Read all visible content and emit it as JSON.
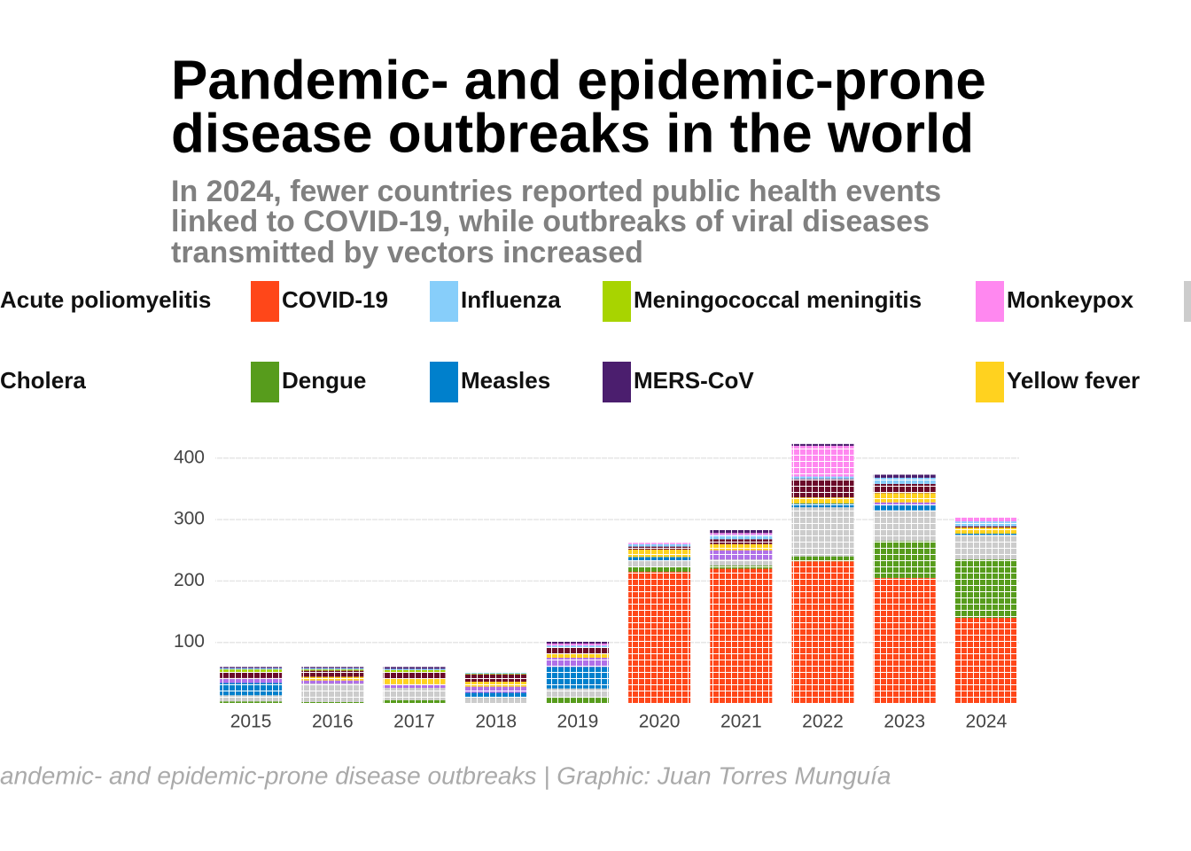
{
  "chart_data": {
    "type": "waffle",
    "title": [
      "Pandemic- and epidemic-prone",
      "disease outbreaks in the world"
    ],
    "subtitle": [
      "In 2024, fewer countries reported public health events",
      "linked to COVID-19, while outbreaks of viral diseases",
      "transmitted by vectors increased"
    ],
    "caption": "andemic- and epidemic-prone disease outbreaks | Graphic: Juan Torres Munguía",
    "categories": [
      "2015",
      "2016",
      "2017",
      "2018",
      "2019",
      "2020",
      "2021",
      "2022",
      "2023",
      "2024"
    ],
    "series": [
      {
        "name": "COVID-19",
        "color": "#ff4719",
        "values": [
          0,
          0,
          0,
          0,
          0,
          215,
          220,
          232,
          205,
          140
        ]
      },
      {
        "name": "Dengue",
        "color": "#579c1c",
        "values": [
          4,
          3,
          6,
          0,
          10,
          8,
          5,
          8,
          60,
          95
        ]
      },
      {
        "name": null,
        "color": "#cccccc",
        "values": [
          10,
          30,
          20,
          10,
          15,
          10,
          10,
          80,
          50,
          40
        ]
      },
      {
        "name": "Measles",
        "color": "#0080cc",
        "values": [
          20,
          0,
          0,
          8,
          35,
          6,
          0,
          6,
          8,
          2
        ]
      },
      {
        "name": "Cholera",
        "color": "#b070e8",
        "values": [
          8,
          5,
          6,
          10,
          15,
          0,
          15,
          0,
          5,
          0
        ]
      },
      {
        "name": "Yellow fever",
        "color": "#ffd21f",
        "values": [
          0,
          6,
          9,
          8,
          6,
          12,
          10,
          10,
          15,
          10
        ]
      },
      {
        "name": "Acute poliomyelitis",
        "color": "#6b0a2a",
        "values": [
          10,
          10,
          10,
          12,
          10,
          5,
          8,
          30,
          15,
          2
        ]
      },
      {
        "name": "Meningococcal meningitis",
        "color": "#a8d400",
        "values": [
          4,
          2,
          4,
          1,
          0,
          0,
          0,
          0,
          0,
          0
        ]
      },
      {
        "name": "Influenza",
        "color": "#87cefa",
        "values": [
          2,
          2,
          2,
          2,
          4,
          4,
          7,
          4,
          10,
          8
        ]
      },
      {
        "name": "Monkeypox",
        "color": "#ff88f0",
        "values": [
          0,
          0,
          0,
          1,
          3,
          2,
          3,
          50,
          0,
          6
        ]
      },
      {
        "name": "MERS-CoV",
        "color": "#4b1e6e",
        "values": [
          2,
          2,
          3,
          0,
          4,
          0,
          5,
          3,
          5,
          0
        ]
      }
    ],
    "ylim": [
      0,
      430
    ],
    "yticks": [
      100,
      200,
      300,
      400
    ],
    "grid": true
  }
}
